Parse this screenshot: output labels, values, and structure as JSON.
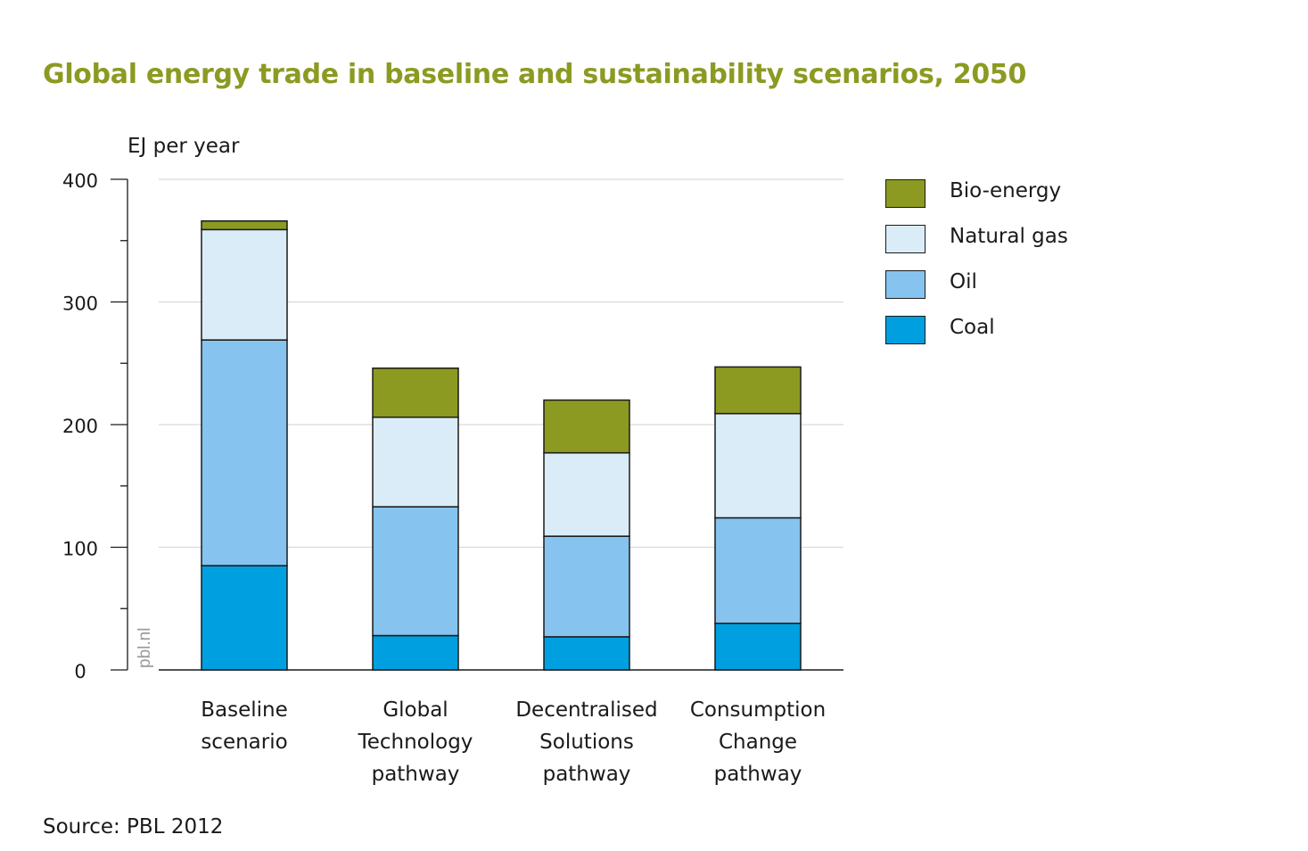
{
  "title": "Global energy trade in baseline and sustainability scenarios, 2050",
  "source": "Source: PBL 2012",
  "watermark": "pbl.nl",
  "colors": {
    "title": "#8c9a22",
    "Bio-energy": "#8c9a22",
    "Natural gas": "#dbecf9",
    "Oil": "#86c4ef",
    "Coal": "#009fe0",
    "grid": "#d9d9d9"
  },
  "chart_data": {
    "type": "bar",
    "stacked": true,
    "title": "Global energy trade in baseline and sustainability scenarios, 2050",
    "ylabel": "EJ per year",
    "xlabel": "",
    "ylim": [
      0,
      400
    ],
    "yticks": [
      0,
      100,
      200,
      300,
      400
    ],
    "grid": true,
    "legend_position": "right",
    "categories": [
      [
        "Baseline",
        "scenario"
      ],
      [
        "Global",
        "Technology",
        "pathway"
      ],
      [
        "Decentralised",
        "Solutions",
        "pathway"
      ],
      [
        "Consumption",
        "Change",
        "pathway"
      ]
    ],
    "series": [
      {
        "name": "Coal",
        "values": [
          85,
          28,
          27,
          38
        ]
      },
      {
        "name": "Oil",
        "values": [
          184,
          105,
          82,
          86
        ]
      },
      {
        "name": "Natural gas",
        "values": [
          90,
          73,
          68,
          85
        ]
      },
      {
        "name": "Bio-energy",
        "values": [
          7,
          40,
          43,
          38
        ]
      }
    ],
    "legend": [
      "Bio-energy",
      "Natural gas",
      "Oil",
      "Coal"
    ]
  }
}
